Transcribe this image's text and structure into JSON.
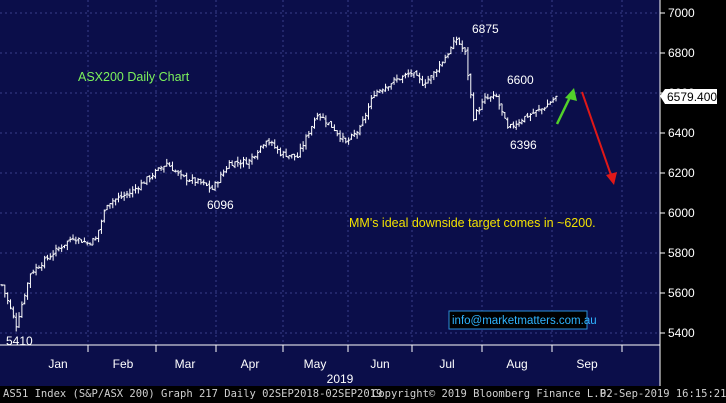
{
  "chart_data": {
    "type": "ohlc",
    "title": "ASX200 Daily Chart",
    "y_ticks": [
      5400,
      5600,
      5800,
      6000,
      6200,
      6400,
      6600,
      6800,
      7000
    ],
    "ylim": [
      5340,
      7040
    ],
    "month_labels": [
      "Jan",
      "Feb",
      "Mar",
      "Apr",
      "May",
      "Jun",
      "Jul",
      "Aug",
      "Sep"
    ],
    "year_label": "2019",
    "last_price_label": "6579.400",
    "annotations": {
      "low_start": "5410",
      "low_mar": "6096",
      "high_jul": "6875",
      "level_aug_high": "6600",
      "low_aug": "6396",
      "target_note": "MM's ideal downside target comes in ~6200.",
      "email": "info@marketmatters.com.au"
    },
    "colors": {
      "background": "#0b0e4a",
      "grid": "#3a3f8a",
      "bars": "#ffffff",
      "title": "#7cf25c",
      "note": "#f2e100",
      "up_arrow": "#52d12a",
      "down_arrow": "#e01818"
    },
    "close_path_keypoints": [
      [
        0,
        5640
      ],
      [
        5,
        5440
      ],
      [
        10,
        5700
      ],
      [
        18,
        5800
      ],
      [
        25,
        5880
      ],
      [
        30,
        5850
      ],
      [
        33,
        5870
      ],
      [
        37,
        6050
      ],
      [
        45,
        6100
      ],
      [
        52,
        6180
      ],
      [
        58,
        6250
      ],
      [
        63,
        6180
      ],
      [
        70,
        6150
      ],
      [
        74,
        6120
      ],
      [
        80,
        6250
      ],
      [
        87,
        6260
      ],
      [
        93,
        6370
      ],
      [
        98,
        6300
      ],
      [
        104,
        6280
      ],
      [
        111,
        6500
      ],
      [
        117,
        6420
      ],
      [
        121,
        6350
      ],
      [
        126,
        6420
      ],
      [
        131,
        6600
      ],
      [
        138,
        6660
      ],
      [
        144,
        6700
      ],
      [
        148,
        6650
      ],
      [
        151,
        6680
      ],
      [
        157,
        6800
      ],
      [
        160,
        6870
      ],
      [
        163,
        6800
      ],
      [
        166,
        6480
      ],
      [
        170,
        6570
      ],
      [
        174,
        6580
      ],
      [
        178,
        6420
      ],
      [
        184,
        6480
      ],
      [
        190,
        6520
      ],
      [
        195,
        6579.4
      ]
    ]
  },
  "footer": {
    "left": "AS51 Index (S&P/ASX 200) Graph 217  Daily 02SEP2018-02SEP2019",
    "center": "Copyright© 2019 Bloomberg Finance L.P.",
    "right": "02-Sep-2019 16:15:21"
  }
}
